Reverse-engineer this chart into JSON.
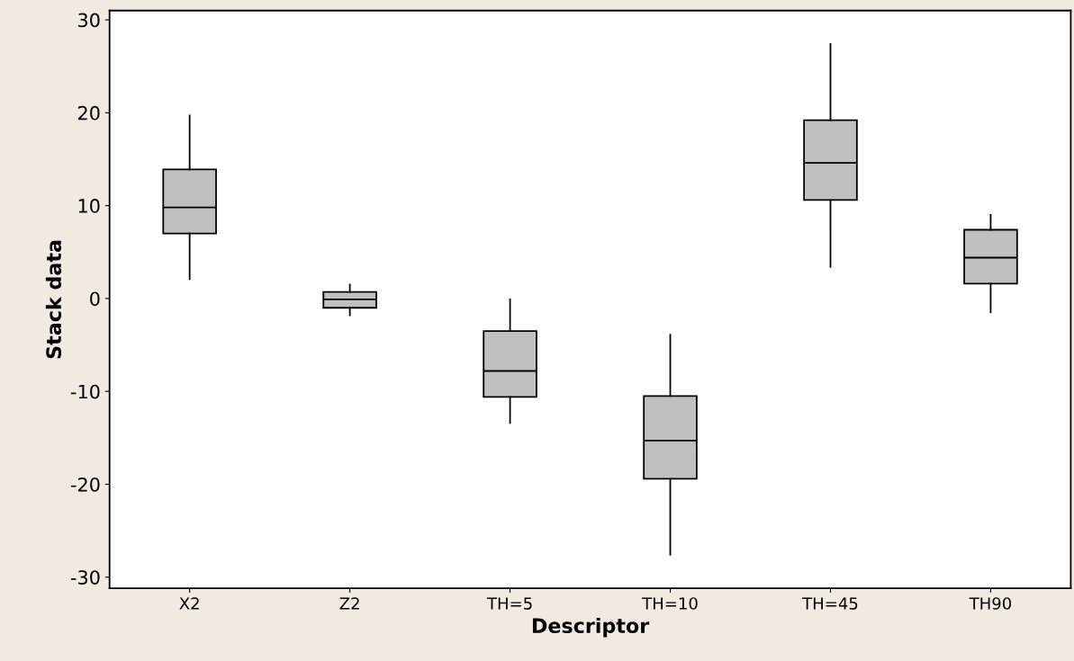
{
  "chart_data": {
    "type": "box",
    "xlabel": "Descriptor",
    "ylabel": "Stack data",
    "categories": [
      "X2",
      "Z2",
      "TH=5",
      "TH=10",
      "TH=45",
      "TH90"
    ],
    "boxes": [
      {
        "low": 2.1,
        "q1": 7.0,
        "median": 9.8,
        "q3": 13.9,
        "high": 19.7
      },
      {
        "low": -1.8,
        "q1": -1.0,
        "median": -0.1,
        "q3": 0.7,
        "high": 1.5
      },
      {
        "low": -13.4,
        "q1": -10.6,
        "median": -7.8,
        "q3": -3.5,
        "high": -0.1
      },
      {
        "low": -27.6,
        "q1": -19.4,
        "median": -15.3,
        "q3": -10.5,
        "high": -3.9
      },
      {
        "low": 3.4,
        "q1": 10.6,
        "median": 14.6,
        "q3": 19.2,
        "high": 27.4
      },
      {
        "low": -1.5,
        "q1": 1.6,
        "median": 4.4,
        "q3": 7.4,
        "high": 9.0
      }
    ],
    "color": "#c0c0c0",
    "ylim": [
      -31.2,
      31.0
    ],
    "yticks": [
      -30,
      -20,
      -10,
      0,
      10,
      20,
      30
    ],
    "grid": false
  }
}
